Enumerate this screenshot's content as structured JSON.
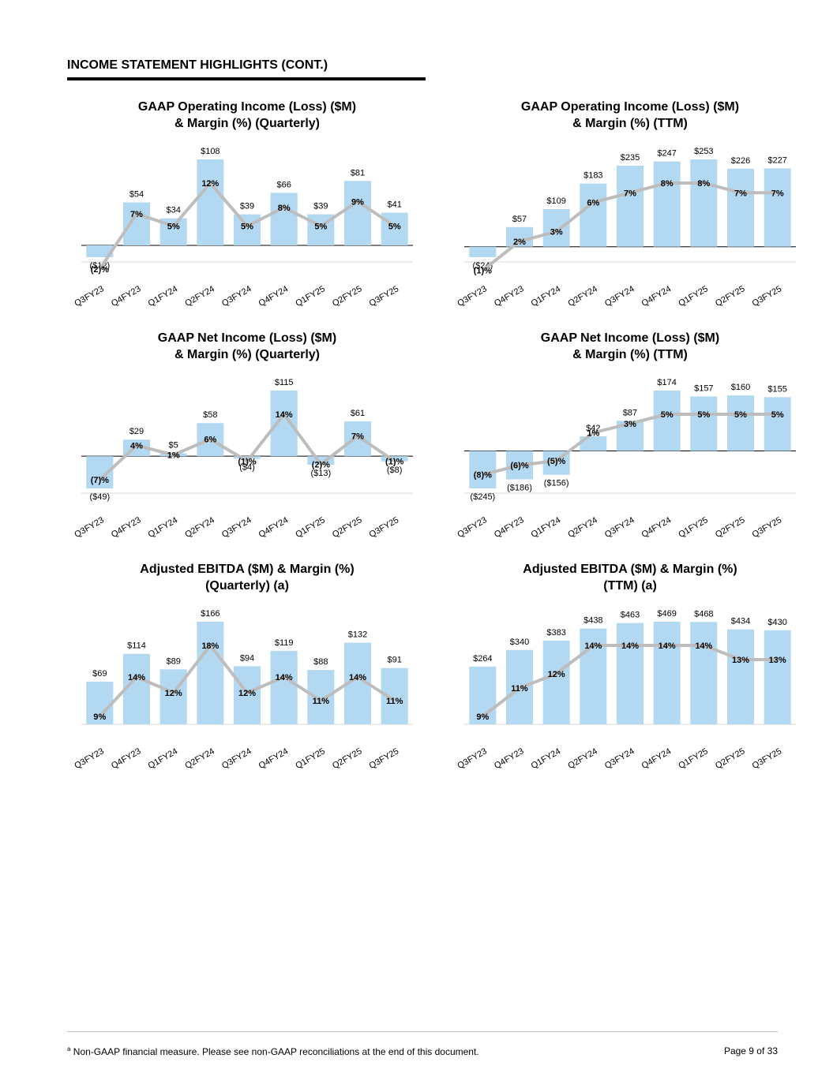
{
  "page": {
    "section_title": "INCOME STATEMENT HIGHLIGHTS (CONT.)",
    "footnote_marker": "a",
    "footnote_text": " Non-GAAP financial measure. Please see non-GAAP reconciliations at the end of this document.",
    "page_number": "Page 9 of 33"
  },
  "colors": {
    "bar": "#b3d9f2",
    "line": "#bdbdbd",
    "axis": "#d9d9d9",
    "zero": "#000000"
  },
  "chart_data": [
    {
      "type": "bar",
      "title": [
        "GAAP Operating Income (Loss) ($M)",
        "& Margin (%) (Quarterly)"
      ],
      "categories": [
        "Q3FY23",
        "Q4FY23",
        "Q1FY24",
        "Q2FY24",
        "Q3FY24",
        "Q4FY24",
        "Q1FY25",
        "Q2FY25",
        "Q3FY25"
      ],
      "values": [
        -12,
        54,
        34,
        108,
        39,
        66,
        39,
        81,
        41
      ],
      "value_labels": [
        "($12)",
        "$54",
        "$34",
        "$108",
        "$39",
        "$66",
        "$39",
        "$81",
        "$41"
      ],
      "margins": [
        -2,
        7,
        5,
        12,
        5,
        8,
        5,
        9,
        5
      ],
      "margin_labels": [
        "(2)%",
        "7%",
        "5%",
        "12%",
        "5%",
        "8%",
        "5%",
        "9%",
        "5%"
      ]
    },
    {
      "type": "bar",
      "title": [
        "GAAP Operating Income (Loss) ($M)",
        "& Margin (%) (TTM)"
      ],
      "categories": [
        "Q3FY23",
        "Q4FY23",
        "Q1FY24",
        "Q2FY24",
        "Q3FY24",
        "Q4FY24",
        "Q1FY25",
        "Q2FY25",
        "Q3FY25"
      ],
      "values": [
        -24,
        57,
        109,
        183,
        235,
        247,
        253,
        226,
        227
      ],
      "value_labels": [
        "($24)",
        "$57",
        "$109",
        "$183",
        "$235",
        "$247",
        "$253",
        "$226",
        "$227"
      ],
      "margins": [
        -1,
        2,
        3,
        6,
        7,
        8,
        8,
        7,
        7
      ],
      "margin_labels": [
        "(1)%",
        "2%",
        "3%",
        "6%",
        "7%",
        "8%",
        "8%",
        "7%",
        "7%"
      ]
    },
    {
      "type": "bar",
      "title": [
        "GAAP Net Income (Loss) ($M)",
        "& Margin (%) (Quarterly)"
      ],
      "categories": [
        "Q3FY23",
        "Q4FY23",
        "Q1FY24",
        "Q2FY24",
        "Q3FY24",
        "Q4FY24",
        "Q1FY25",
        "Q2FY25",
        "Q3FY25"
      ],
      "values": [
        -49,
        29,
        5,
        58,
        -4,
        115,
        -13,
        61,
        -8
      ],
      "value_labels": [
        "($49)",
        "$29",
        "$5",
        "$58",
        "($4)",
        "$115",
        "($13)",
        "$61",
        "($8)"
      ],
      "margins": [
        -7,
        4,
        1,
        6,
        -1,
        14,
        -2,
        7,
        -1
      ],
      "margin_labels": [
        "(7)%",
        "4%",
        "1%",
        "6%",
        "(1)%",
        "14%",
        "(2)%",
        "7%",
        "(1)%"
      ]
    },
    {
      "type": "bar",
      "title": [
        "GAAP Net Income (Loss) ($M)",
        "& Margin (%) (TTM)"
      ],
      "categories": [
        "Q3FY23",
        "Q4FY23",
        "Q1FY24",
        "Q2FY24",
        "Q3FY24",
        "Q4FY24",
        "Q1FY25",
        "Q2FY25",
        "Q3FY25"
      ],
      "values": [
        -245,
        -186,
        -156,
        42,
        87,
        174,
        157,
        160,
        155
      ],
      "value_labels": [
        "($245)",
        "($186)",
        "($156)",
        "$42",
        "$87",
        "$174",
        "$157",
        "$160",
        "$155"
      ],
      "margins": [
        -8,
        -6,
        -5,
        1,
        3,
        5,
        5,
        5,
        5
      ],
      "margin_labels": [
        "(8)%",
        "(6)%",
        "(5)%",
        "1%",
        "3%",
        "5%",
        "5%",
        "5%",
        "5%"
      ]
    },
    {
      "type": "bar",
      "title": [
        "Adjusted EBITDA ($M) & Margin (%)",
        "(Quarterly) (a)"
      ],
      "categories": [
        "Q3FY23",
        "Q4FY23",
        "Q1FY24",
        "Q2FY24",
        "Q3FY24",
        "Q4FY24",
        "Q1FY25",
        "Q2FY25",
        "Q3FY25"
      ],
      "values": [
        69,
        114,
        89,
        166,
        94,
        119,
        88,
        132,
        91
      ],
      "value_labels": [
        "$69",
        "$114",
        "$89",
        "$166",
        "$94",
        "$119",
        "$88",
        "$132",
        "$91"
      ],
      "margins": [
        9,
        14,
        12,
        18,
        12,
        14,
        11,
        14,
        11
      ],
      "margin_labels": [
        "9%",
        "14%",
        "12%",
        "18%",
        "12%",
        "14%",
        "11%",
        "14%",
        "11%"
      ]
    },
    {
      "type": "bar",
      "title": [
        "Adjusted EBITDA ($M) & Margin (%)",
        "(TTM) (a)"
      ],
      "categories": [
        "Q3FY23",
        "Q4FY23",
        "Q1FY24",
        "Q2FY24",
        "Q3FY24",
        "Q4FY24",
        "Q1FY25",
        "Q2FY25",
        "Q3FY25"
      ],
      "values": [
        264,
        340,
        383,
        438,
        463,
        469,
        468,
        434,
        430
      ],
      "value_labels": [
        "$264",
        "$340",
        "$383",
        "$438",
        "$463",
        "$469",
        "$468",
        "$434",
        "$430"
      ],
      "margins": [
        9,
        11,
        12,
        14,
        14,
        14,
        14,
        13,
        13
      ],
      "margin_labels": [
        "9%",
        "11%",
        "12%",
        "14%",
        "14%",
        "14%",
        "14%",
        "13%",
        "13%"
      ]
    }
  ]
}
